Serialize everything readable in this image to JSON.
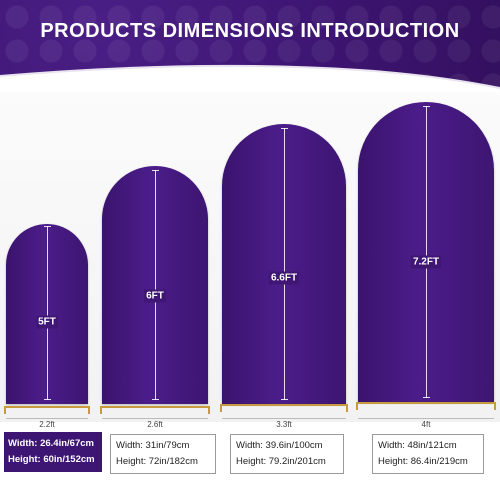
{
  "title": "PRODUCTS DIMENSIONS  INTRODUCTION",
  "colors": {
    "accent": "#3d1572",
    "frame": "#c79a3e"
  },
  "products": [
    {
      "height_label": "5FT",
      "width_label": "2.2ft",
      "width_text": "Width: 26.4in/67cm",
      "height_text": "Height: 60in/152cm"
    },
    {
      "height_label": "6FT",
      "width_label": "2.6ft",
      "width_text": "Width: 31in/79cm",
      "height_text": "Height: 72in/182cm"
    },
    {
      "height_label": "6.6FT",
      "width_label": "3.3ft",
      "width_text": "Width: 39.6in/100cm",
      "height_text": "Height: 79.2in/201cm"
    },
    {
      "height_label": "7.2FT",
      "width_label": "4ft",
      "width_text": "Width: 48in/121cm",
      "height_text": "Height: 86.4in/219cm"
    }
  ]
}
